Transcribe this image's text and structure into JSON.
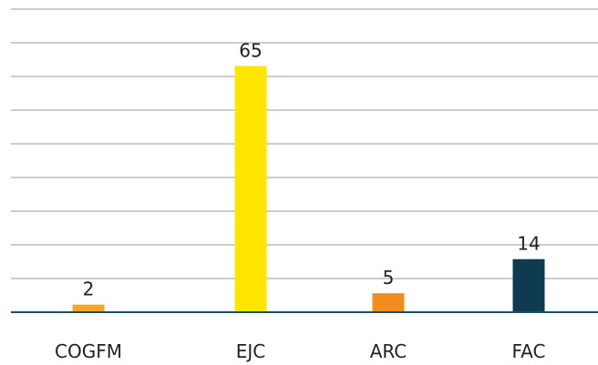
{
  "chart_data": {
    "type": "bar",
    "categories": [
      "COGFM",
      "EJC",
      "ARC",
      "FAC"
    ],
    "values": [
      2,
      65,
      5,
      14
    ],
    "colors": [
      "#F5A623",
      "#FFE600",
      "#F28C1C",
      "#0E3A52"
    ],
    "title": "",
    "xlabel": "",
    "ylabel": "",
    "ylim": [
      0,
      80
    ],
    "grid": true,
    "gridline_count": 9,
    "legend": "none"
  }
}
